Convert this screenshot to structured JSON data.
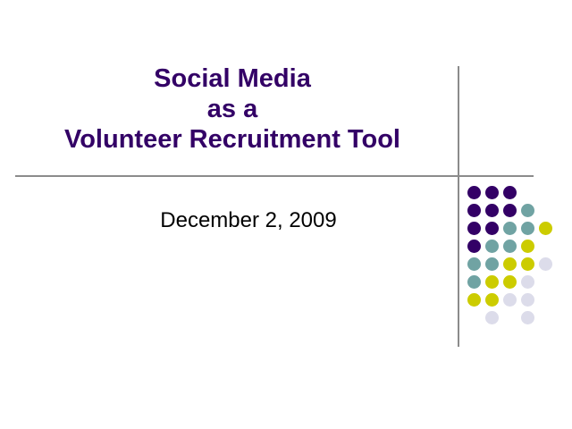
{
  "slide": {
    "background_color": "#FFFFFF",
    "title": {
      "lines": [
        "Social Media",
        "as a",
        "Volunteer Recruitment Tool"
      ],
      "color": "#330066"
    },
    "subtitle": {
      "text": "December 2, 2009",
      "color": "#000000"
    },
    "divider": {
      "color": "#8B8B8B"
    },
    "dot_pattern": {
      "colors": {
        "P": "#330066",
        "T": "#70A3A3",
        "Y": "#CCCC00",
        "L": "#DCDCEA"
      },
      "rows": [
        [
          "P",
          "P",
          "P",
          null,
          null
        ],
        [
          "P",
          "P",
          "P",
          "T",
          null
        ],
        [
          "P",
          "P",
          "T",
          "T",
          "Y"
        ],
        [
          "P",
          "T",
          "T",
          "Y",
          null
        ],
        [
          "T",
          "T",
          "Y",
          "Y",
          "L"
        ],
        [
          "T",
          "Y",
          "Y",
          "L",
          null
        ],
        [
          "Y",
          "Y",
          "L",
          "L",
          null
        ],
        [
          null,
          "L",
          null,
          "L",
          null
        ]
      ]
    }
  }
}
